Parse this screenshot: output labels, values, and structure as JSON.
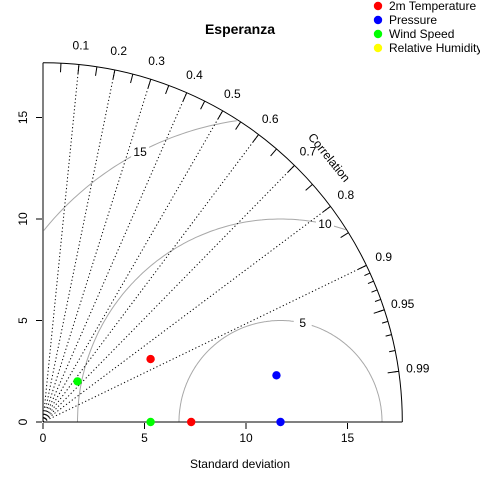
{
  "chart_data": {
    "type": "scatter",
    "title": "Esperanza",
    "xlabel": "Standard deviation",
    "ylabel": "",
    "arc_label": "Correlation",
    "sd_max": 17.7,
    "axis_ticks": [
      0,
      5,
      10,
      15
    ],
    "axis_tick_labels": [
      "0",
      "5",
      "10",
      "15"
    ],
    "rms_reference_sd": 11.7,
    "rms_contours": [
      5,
      10,
      15
    ],
    "rms_contour_labels": [
      "5",
      "10",
      "15"
    ],
    "correlation_labels": [
      0.1,
      0.2,
      0.3,
      0.4,
      0.5,
      0.6,
      0.7,
      0.8,
      0.9,
      0.95,
      0.99
    ],
    "correlation_label_texts": [
      "0.1",
      "0.2",
      "0.3",
      "0.4",
      "0.5",
      "0.6",
      "0.7",
      "0.8",
      "0.9",
      "0.95",
      "0.99"
    ],
    "correlation_lines": [
      0.1,
      0.2,
      0.3,
      0.4,
      0.5,
      0.6,
      0.7,
      0.8,
      0.9
    ],
    "legend_position": "top-right",
    "series": [
      {
        "name": "2m Temperature",
        "color": "#ff0000",
        "points": [
          {
            "x": 5.3,
            "y": 3.1
          },
          {
            "x": 7.3,
            "y": 0.0
          }
        ]
      },
      {
        "name": "Pressure",
        "color": "#0000ff",
        "points": [
          {
            "x": 11.5,
            "y": 2.3
          },
          {
            "x": 11.7,
            "y": 0.0
          }
        ]
      },
      {
        "name": "Wind Speed",
        "color": "#00ff00",
        "points": [
          {
            "x": 1.7,
            "y": 2.0
          },
          {
            "x": 5.3,
            "y": 0.0
          }
        ]
      },
      {
        "name": "Relative Humidity",
        "color": "#ffff00",
        "points": []
      }
    ]
  }
}
